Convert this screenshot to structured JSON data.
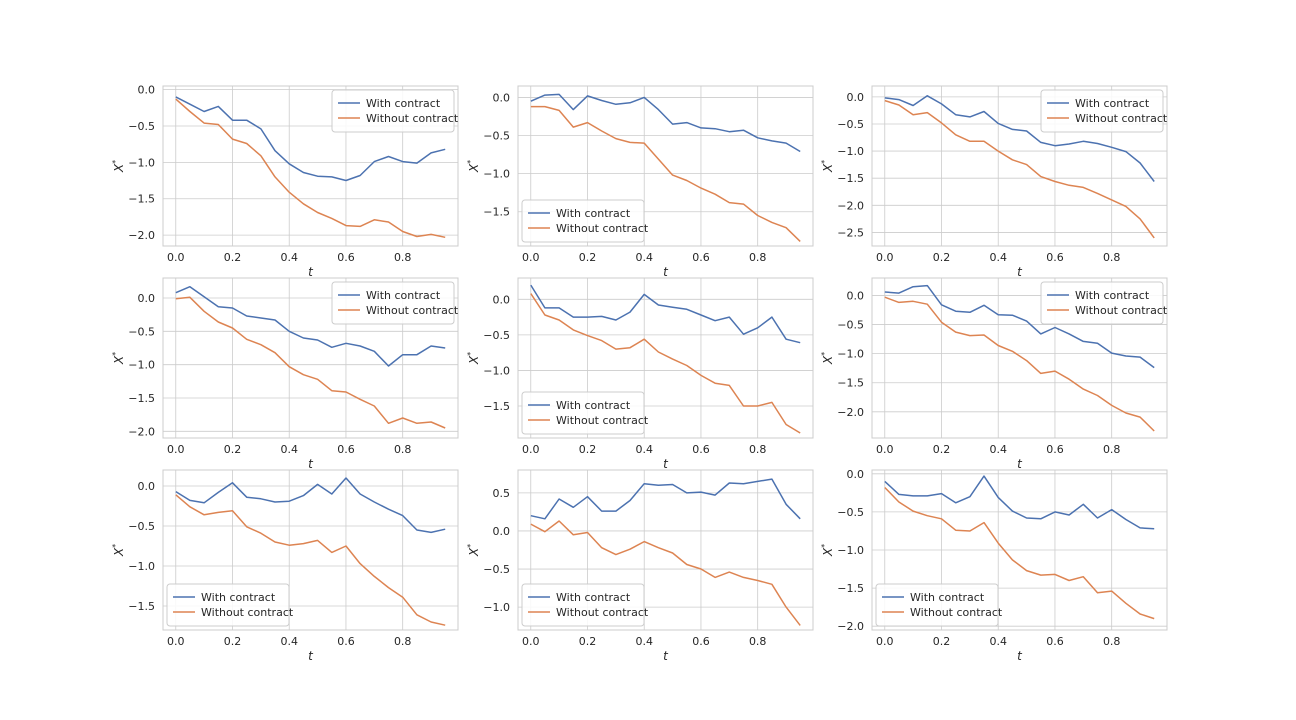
{
  "chart_data": {
    "type": "line",
    "layout": "3x3 grid of subplots",
    "colors": {
      "with_contract": "#4c72b0",
      "without_contract": "#dd8452"
    },
    "x": [
      0.0,
      0.05,
      0.1,
      0.15,
      0.2,
      0.25,
      0.3,
      0.35,
      0.4,
      0.45,
      0.5,
      0.55,
      0.6,
      0.65,
      0.7,
      0.75,
      0.8,
      0.85,
      0.9,
      0.95
    ],
    "series_names": [
      "With contract",
      "Without contract"
    ],
    "x_axis_label": "t",
    "y_axis_label": "X*",
    "x_ticks": [
      "0.0",
      "0.2",
      "0.4",
      "0.6",
      "0.8"
    ],
    "panels": [
      {
        "legend": "top-right",
        "ylim": [
          -2.15,
          0.05
        ],
        "yticks": [
          "0.0",
          "-0.5",
          "-1.0",
          "-1.5",
          "-2.0"
        ],
        "series": [
          {
            "name": "With contract",
            "values": [
              -0.1,
              -0.2,
              -0.3,
              -0.23,
              -0.42,
              -0.42,
              -0.54,
              -0.84,
              -1.02,
              -1.14,
              -1.19,
              -1.2,
              -1.25,
              -1.18,
              -0.99,
              -0.92,
              -0.99,
              -1.01,
              -0.87,
              -0.82
            ]
          },
          {
            "name": "Without contract",
            "values": [
              -0.13,
              -0.3,
              -0.46,
              -0.48,
              -0.68,
              -0.74,
              -0.91,
              -1.2,
              -1.41,
              -1.57,
              -1.69,
              -1.77,
              -1.87,
              -1.88,
              -1.79,
              -1.82,
              -1.95,
              -2.02,
              -1.99,
              -2.03
            ]
          }
        ]
      },
      {
        "legend": "bottom-left",
        "ylim": [
          -1.95,
          0.15
        ],
        "yticks": [
          "0.0",
          "-0.5",
          "-1.0",
          "-1.5"
        ],
        "series": [
          {
            "name": "With contract",
            "values": [
              -0.05,
              0.03,
              0.04,
              -0.16,
              0.02,
              -0.04,
              -0.09,
              -0.07,
              0.0,
              -0.16,
              -0.35,
              -0.33,
              -0.4,
              -0.41,
              -0.45,
              -0.43,
              -0.53,
              -0.57,
              -0.6,
              -0.71
            ]
          },
          {
            "name": "Without contract",
            "values": [
              -0.12,
              -0.12,
              -0.17,
              -0.39,
              -0.33,
              -0.44,
              -0.54,
              -0.59,
              -0.6,
              -0.81,
              -1.02,
              -1.09,
              -1.19,
              -1.27,
              -1.38,
              -1.4,
              -1.55,
              -1.64,
              -1.71,
              -1.89
            ]
          }
        ]
      },
      {
        "legend": "top-right",
        "ylim": [
          -2.75,
          0.2
        ],
        "yticks": [
          "0.0",
          "-0.5",
          "-1.0",
          "-1.5",
          "-2.0",
          "-2.5"
        ],
        "series": [
          {
            "name": "With contract",
            "values": [
              -0.02,
              -0.05,
              -0.16,
              0.02,
              -0.13,
              -0.33,
              -0.37,
              -0.27,
              -0.49,
              -0.6,
              -0.63,
              -0.84,
              -0.9,
              -0.87,
              -0.82,
              -0.86,
              -0.93,
              -1.01,
              -1.22,
              -1.56
            ]
          },
          {
            "name": "Without contract",
            "values": [
              -0.07,
              -0.15,
              -0.33,
              -0.29,
              -0.48,
              -0.7,
              -0.82,
              -0.82,
              -1.0,
              -1.16,
              -1.25,
              -1.47,
              -1.56,
              -1.63,
              -1.67,
              -1.78,
              -1.9,
              -2.02,
              -2.25,
              -2.6
            ]
          }
        ]
      },
      {
        "legend": "top-right",
        "ylim": [
          -2.1,
          0.3
        ],
        "yticks": [
          "0.0",
          "-0.5",
          "-1.0",
          "-1.5",
          "-2.0"
        ],
        "series": [
          {
            "name": "With contract",
            "values": [
              0.08,
              0.17,
              0.02,
              -0.13,
              -0.15,
              -0.27,
              -0.3,
              -0.33,
              -0.5,
              -0.6,
              -0.63,
              -0.74,
              -0.68,
              -0.72,
              -0.8,
              -1.02,
              -0.85,
              -0.85,
              -0.72,
              -0.75
            ]
          },
          {
            "name": "Without contract",
            "values": [
              -0.01,
              0.01,
              -0.2,
              -0.36,
              -0.45,
              -0.62,
              -0.7,
              -0.82,
              -1.03,
              -1.15,
              -1.22,
              -1.39,
              -1.41,
              -1.52,
              -1.62,
              -1.88,
              -1.8,
              -1.88,
              -1.86,
              -1.95
            ]
          }
        ]
      },
      {
        "legend": "bottom-left",
        "ylim": [
          -1.95,
          0.3
        ],
        "yticks": [
          "0.0",
          "-0.5",
          "-1.0",
          "-1.5"
        ],
        "series": [
          {
            "name": "With contract",
            "values": [
              0.2,
              -0.12,
              -0.12,
              -0.25,
              -0.25,
              -0.24,
              -0.29,
              -0.18,
              0.07,
              -0.08,
              -0.11,
              -0.14,
              -0.22,
              -0.3,
              -0.25,
              -0.49,
              -0.4,
              -0.25,
              -0.56,
              -0.61
            ]
          },
          {
            "name": "Without contract",
            "values": [
              0.08,
              -0.22,
              -0.29,
              -0.43,
              -0.51,
              -0.58,
              -0.7,
              -0.68,
              -0.56,
              -0.74,
              -0.84,
              -0.93,
              -1.07,
              -1.18,
              -1.21,
              -1.5,
              -1.5,
              -1.45,
              -1.76,
              -1.88
            ]
          }
        ]
      },
      {
        "legend": "top-right",
        "ylim": [
          -2.45,
          0.3
        ],
        "yticks": [
          "0.0",
          "-0.5",
          "-1.0",
          "-1.5",
          "-2.0"
        ],
        "series": [
          {
            "name": "With contract",
            "values": [
              0.06,
              0.04,
              0.15,
              0.17,
              -0.16,
              -0.27,
              -0.29,
              -0.17,
              -0.33,
              -0.34,
              -0.44,
              -0.66,
              -0.55,
              -0.66,
              -0.79,
              -0.82,
              -0.99,
              -1.04,
              -1.06,
              -1.24
            ]
          },
          {
            "name": "Without contract",
            "values": [
              -0.03,
              -0.12,
              -0.1,
              -0.15,
              -0.46,
              -0.63,
              -0.69,
              -0.68,
              -0.86,
              -0.96,
              -1.12,
              -1.34,
              -1.3,
              -1.44,
              -1.61,
              -1.72,
              -1.89,
              -2.02,
              -2.09,
              -2.33
            ]
          }
        ]
      },
      {
        "legend": "bottom-left",
        "ylim": [
          -1.8,
          0.2
        ],
        "yticks": [
          "0.0",
          "-0.5",
          "-1.0",
          "-1.5"
        ],
        "series": [
          {
            "name": "With contract",
            "values": [
              -0.07,
              -0.18,
              -0.21,
              -0.08,
              0.04,
              -0.14,
              -0.16,
              -0.2,
              -0.19,
              -0.12,
              0.02,
              -0.1,
              0.1,
              -0.1,
              -0.2,
              -0.29,
              -0.37,
              -0.55,
              -0.58,
              -0.54
            ]
          },
          {
            "name": "Without contract",
            "values": [
              -0.11,
              -0.26,
              -0.36,
              -0.33,
              -0.31,
              -0.51,
              -0.59,
              -0.7,
              -0.74,
              -0.72,
              -0.68,
              -0.83,
              -0.75,
              -0.97,
              -1.13,
              -1.27,
              -1.39,
              -1.61,
              -1.7,
              -1.74
            ]
          }
        ]
      },
      {
        "legend": "bottom-left",
        "ylim": [
          -1.3,
          0.8
        ],
        "yticks": [
          "0.5",
          "0.0",
          "-0.5",
          "-1.0"
        ],
        "series": [
          {
            "name": "With contract",
            "values": [
              0.2,
              0.16,
              0.42,
              0.31,
              0.45,
              0.26,
              0.26,
              0.4,
              0.62,
              0.6,
              0.61,
              0.5,
              0.51,
              0.47,
              0.63,
              0.62,
              0.65,
              0.68,
              0.35,
              0.16
            ]
          },
          {
            "name": "Without contract",
            "values": [
              0.09,
              -0.01,
              0.13,
              -0.05,
              -0.02,
              -0.22,
              -0.31,
              -0.24,
              -0.14,
              -0.22,
              -0.29,
              -0.44,
              -0.5,
              -0.61,
              -0.54,
              -0.61,
              -0.65,
              -0.7,
              -1.0,
              -1.24
            ]
          }
        ]
      },
      {
        "legend": "bottom-left",
        "ylim": [
          -2.05,
          0.05
        ],
        "yticks": [
          "0.0",
          "-0.5",
          "-1.0",
          "-1.5",
          "-2.0"
        ],
        "series": [
          {
            "name": "With contract",
            "values": [
              -0.1,
              -0.27,
              -0.29,
              -0.29,
              -0.26,
              -0.38,
              -0.3,
              -0.03,
              -0.31,
              -0.49,
              -0.58,
              -0.59,
              -0.5,
              -0.54,
              -0.4,
              -0.58,
              -0.47,
              -0.6,
              -0.71,
              -0.72
            ]
          },
          {
            "name": "Without contract",
            "values": [
              -0.18,
              -0.37,
              -0.49,
              -0.55,
              -0.59,
              -0.74,
              -0.75,
              -0.64,
              -0.91,
              -1.13,
              -1.27,
              -1.33,
              -1.32,
              -1.4,
              -1.35,
              -1.56,
              -1.54,
              -1.7,
              -1.84,
              -1.9
            ]
          }
        ]
      }
    ]
  }
}
